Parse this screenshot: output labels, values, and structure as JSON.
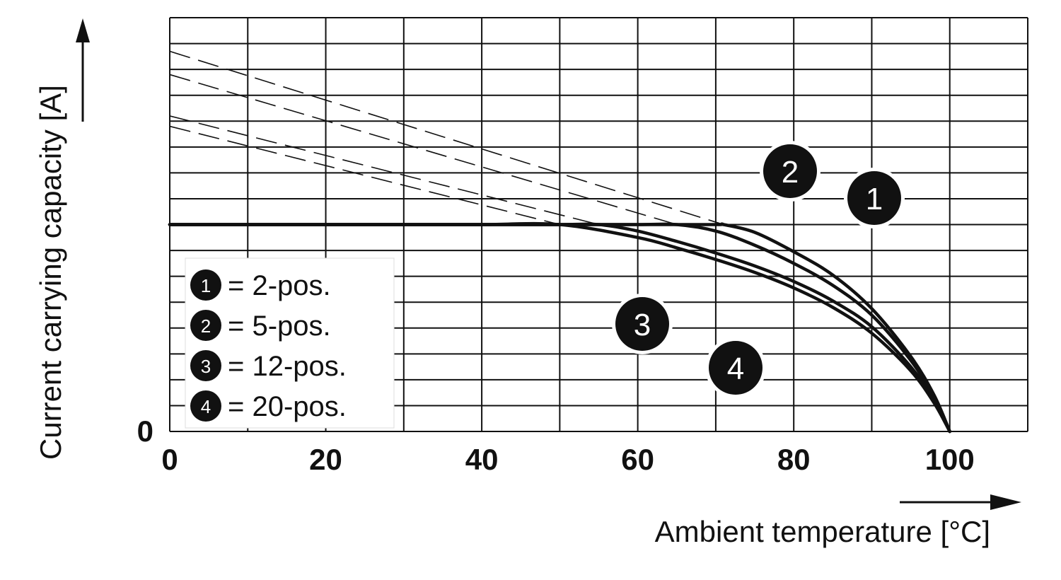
{
  "chart_data": {
    "type": "line",
    "xlabel": "Ambient temperature [°C]",
    "ylabel": "Current carrying capacity [A]",
    "xlim": [
      0,
      110
    ],
    "ylim": [
      0,
      16
    ],
    "x_ticks": [
      "0",
      "20",
      "40",
      "60",
      "80",
      "100"
    ],
    "x_tick_values": [
      0,
      20,
      40,
      60,
      80,
      100
    ],
    "y_tick_labels": [
      "0"
    ],
    "grid": true,
    "legend_position": "bottom-left",
    "legend": [
      {
        "badge": "1",
        "text": "= 2-pos."
      },
      {
        "badge": "2",
        "text": "= 5-pos."
      },
      {
        "badge": "3",
        "text": "= 12-pos."
      },
      {
        "badge": "4",
        "text": "= 20-pos."
      }
    ],
    "cap_level": 8,
    "series": [
      {
        "badge": "1",
        "x": [
          0,
          10,
          20,
          30,
          40,
          50,
          60,
          70,
          71,
          75,
          80,
          85,
          90,
          95,
          98,
          100
        ],
        "y": [
          8,
          8,
          8,
          8,
          8,
          8,
          8,
          8,
          8,
          7.7,
          6.95,
          6.05,
          4.75,
          2.9,
          1.4,
          0
        ],
        "dashed_x": [
          0,
          71
        ],
        "dashed_y": [
          14.7,
          8
        ]
      },
      {
        "badge": "2",
        "x": [
          0,
          10,
          20,
          30,
          40,
          50,
          60,
          65,
          70,
          75,
          80,
          85,
          90,
          95,
          98,
          100
        ],
        "y": [
          8,
          8,
          8,
          8,
          8,
          8,
          8,
          8,
          7.75,
          7.2,
          6.5,
          5.65,
          4.5,
          2.75,
          1.3,
          0
        ],
        "dashed_x": [
          0,
          65
        ],
        "dashed_y": [
          13.8,
          8
        ]
      },
      {
        "badge": "3",
        "x": [
          0,
          10,
          20,
          30,
          40,
          50,
          55,
          60,
          65,
          70,
          75,
          80,
          85,
          90,
          95,
          98,
          100
        ],
        "y": [
          8,
          8,
          8,
          8,
          8,
          8,
          8,
          7.75,
          7.35,
          6.9,
          6.4,
          5.8,
          5.05,
          4.05,
          2.5,
          1.2,
          0
        ],
        "dashed_x": [
          0,
          55
        ],
        "dashed_y": [
          12.2,
          8
        ]
      },
      {
        "badge": "4",
        "x": [
          0,
          10,
          20,
          30,
          40,
          50,
          60,
          65,
          70,
          75,
          80,
          85,
          90,
          95,
          98,
          100
        ],
        "y": [
          8,
          8,
          8,
          8,
          8,
          8,
          7.5,
          7.1,
          6.65,
          6.15,
          5.55,
          4.8,
          3.8,
          2.35,
          1.1,
          0
        ],
        "dashed_x": [
          0,
          50
        ],
        "dashed_y": [
          11.8,
          8
        ]
      }
    ],
    "callouts": [
      {
        "badge": "1",
        "x": 90,
        "y": 9.1
      },
      {
        "badge": "2",
        "x": 79.5,
        "y": 10.2
      },
      {
        "badge": "3",
        "x": 60.5,
        "y": 4.2
      },
      {
        "badge": "4",
        "x": 72.5,
        "y": 2.4
      }
    ]
  }
}
